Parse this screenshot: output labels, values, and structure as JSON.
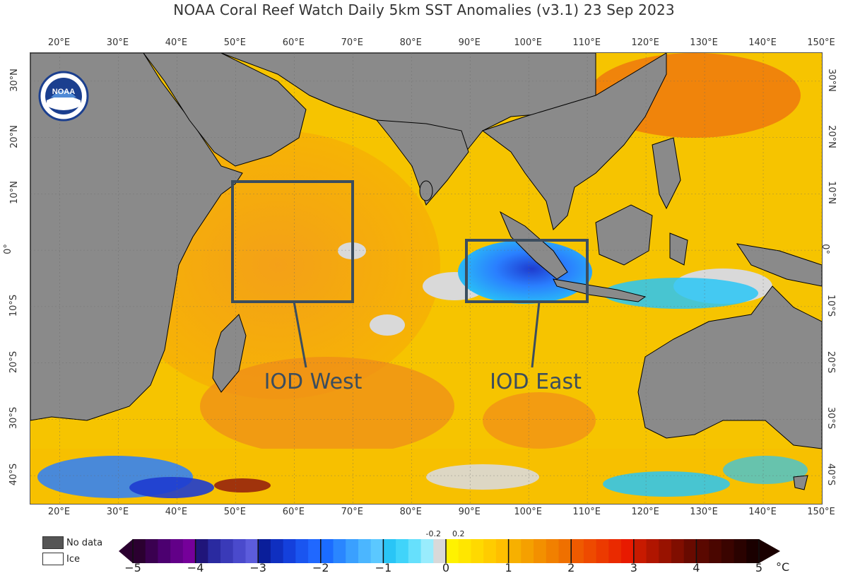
{
  "title": "NOAA Coral Reef Watch Daily 5km SST Anomalies  (v3.1)   23 Sep 2023",
  "logo": {
    "text": "NOAA",
    "icon": "noaa-logo-icon"
  },
  "lon_labels": [
    "20°E",
    "30°E",
    "40°E",
    "50°E",
    "60°E",
    "70°E",
    "80°E",
    "90°E",
    "100°E",
    "110°E",
    "120°E",
    "130°E",
    "140°E",
    "150°E"
  ],
  "lat_labels": [
    "30°N",
    "20°N",
    "10°N",
    "0°",
    "10°S",
    "20°S",
    "30°S",
    "40°S"
  ],
  "boxes": {
    "west_label": "IOD West",
    "east_label": "IOD East",
    "box_color": "#3b4d5e"
  },
  "legend": {
    "no_data": "No data",
    "ice": "Ice",
    "no_data_color": "#555555",
    "ice_color": "#ffffff"
  },
  "colorbar": {
    "ticks": [
      "−5",
      "−4",
      "−3",
      "−2",
      "−1",
      "0",
      "1",
      "2",
      "3",
      "4",
      "5"
    ],
    "small_ticks": [
      "-0.2",
      "0.2"
    ],
    "unit": "°C"
  },
  "colors": {
    "land": "#8a8a8a",
    "ocean_warm": "#f7c000",
    "ocean_orange": "#f5a623",
    "cool_blue": "#2a7fff",
    "light_cyan": "#29c5f6",
    "near_zero": "#d9d9d9"
  }
}
